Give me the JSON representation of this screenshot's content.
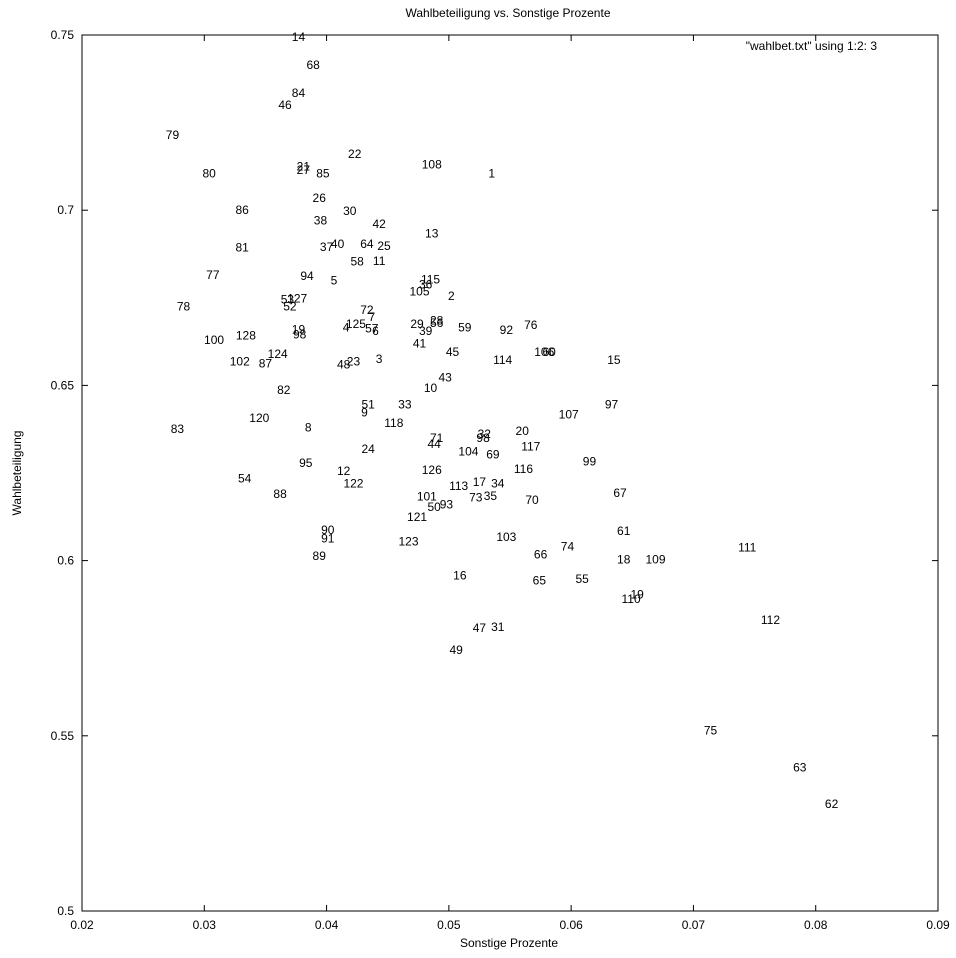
{
  "chart_data": {
    "type": "scatter",
    "title": "Wahlbeteiligung vs. Sonstige Prozente",
    "xlabel": "Sonstige Prozente",
    "ylabel": "Wahlbeteiligung",
    "legend": "\"wahlbet.txt\" using 1:2: 3",
    "legend_position": "top-right",
    "xlim": [
      0.02,
      0.09
    ],
    "ylim": [
      0.5,
      0.75
    ],
    "grid": false,
    "marker": "label",
    "x_ticks": [
      "0.02",
      "0.03",
      "0.04",
      "0.05",
      "0.06",
      "0.07",
      "0.08",
      "0.09"
    ],
    "y_ticks": [
      "0.5",
      "0.55",
      "0.6",
      "0.65",
      "0.7",
      "0.75"
    ],
    "points": [
      {
        "label": "14",
        "x": 0.0377,
        "y": 0.7495
      },
      {
        "label": "68",
        "x": 0.0389,
        "y": 0.7415
      },
      {
        "label": "84",
        "x": 0.0377,
        "y": 0.7335
      },
      {
        "label": "46",
        "x": 0.0366,
        "y": 0.73
      },
      {
        "label": "79",
        "x": 0.0274,
        "y": 0.7215
      },
      {
        "label": "22",
        "x": 0.0423,
        "y": 0.716
      },
      {
        "label": "108",
        "x": 0.0486,
        "y": 0.713
      },
      {
        "label": "21",
        "x": 0.0381,
        "y": 0.7125
      },
      {
        "label": "27",
        "x": 0.0381,
        "y": 0.7115
      },
      {
        "label": "85",
        "x": 0.0397,
        "y": 0.7105
      },
      {
        "label": "80",
        "x": 0.0304,
        "y": 0.7105
      },
      {
        "label": "1",
        "x": 0.0535,
        "y": 0.7105
      },
      {
        "label": "26",
        "x": 0.0394,
        "y": 0.7035
      },
      {
        "label": "86",
        "x": 0.0331,
        "y": 0.7
      },
      {
        "label": "30",
        "x": 0.0419,
        "y": 0.6998
      },
      {
        "label": "38",
        "x": 0.0395,
        "y": 0.697
      },
      {
        "label": "42",
        "x": 0.0443,
        "y": 0.696
      },
      {
        "label": "13",
        "x": 0.0486,
        "y": 0.6933
      },
      {
        "label": "37",
        "x": 0.04,
        "y": 0.6895
      },
      {
        "label": "40",
        "x": 0.0409,
        "y": 0.6903
      },
      {
        "label": "64",
        "x": 0.0433,
        "y": 0.6903
      },
      {
        "label": "25",
        "x": 0.0447,
        "y": 0.6898
      },
      {
        "label": "81",
        "x": 0.0331,
        "y": 0.6893
      },
      {
        "label": "58",
        "x": 0.0425,
        "y": 0.6853
      },
      {
        "label": "11",
        "x": 0.0443,
        "y": 0.6855
      },
      {
        "label": "77",
        "x": 0.0307,
        "y": 0.6815
      },
      {
        "label": "94",
        "x": 0.0384,
        "y": 0.6812
      },
      {
        "label": "5",
        "x": 0.0406,
        "y": 0.68
      },
      {
        "label": "115",
        "x": 0.0485,
        "y": 0.6802
      },
      {
        "label": "36",
        "x": 0.0481,
        "y": 0.6788
      },
      {
        "label": "105",
        "x": 0.0476,
        "y": 0.6768
      },
      {
        "label": "2",
        "x": 0.0502,
        "y": 0.6755
      },
      {
        "label": "53",
        "x": 0.0368,
        "y": 0.6745
      },
      {
        "label": "127",
        "x": 0.0376,
        "y": 0.6748
      },
      {
        "label": "52",
        "x": 0.037,
        "y": 0.6725
      },
      {
        "label": "78",
        "x": 0.0283,
        "y": 0.6725
      },
      {
        "label": "72",
        "x": 0.0433,
        "y": 0.6715
      },
      {
        "label": "7",
        "x": 0.0437,
        "y": 0.6695
      },
      {
        "label": "28",
        "x": 0.049,
        "y": 0.6685
      },
      {
        "label": "29",
        "x": 0.0474,
        "y": 0.6675
      },
      {
        "label": "56",
        "x": 0.049,
        "y": 0.6678
      },
      {
        "label": "125",
        "x": 0.0424,
        "y": 0.6675
      },
      {
        "label": "4",
        "x": 0.0416,
        "y": 0.6665
      },
      {
        "label": "59",
        "x": 0.0513,
        "y": 0.6665
      },
      {
        "label": "76",
        "x": 0.0567,
        "y": 0.6672
      },
      {
        "label": "57",
        "x": 0.0437,
        "y": 0.6663
      },
      {
        "label": "6",
        "x": 0.044,
        "y": 0.6655
      },
      {
        "label": "39",
        "x": 0.0481,
        "y": 0.6655
      },
      {
        "label": "92",
        "x": 0.0547,
        "y": 0.6658
      },
      {
        "label": "19",
        "x": 0.0377,
        "y": 0.666
      },
      {
        "label": "128",
        "x": 0.0334,
        "y": 0.6643
      },
      {
        "label": "98",
        "x": 0.0378,
        "y": 0.6645
      },
      {
        "label": "100",
        "x": 0.0308,
        "y": 0.663
      },
      {
        "label": "41",
        "x": 0.0476,
        "y": 0.662
      },
      {
        "label": "45",
        "x": 0.0503,
        "y": 0.6595
      },
      {
        "label": "106",
        "x": 0.0578,
        "y": 0.6595
      },
      {
        "label": "60",
        "x": 0.0582,
        "y": 0.6595
      },
      {
        "label": "124",
        "x": 0.036,
        "y": 0.659
      },
      {
        "label": "102",
        "x": 0.0329,
        "y": 0.6568
      },
      {
        "label": "87",
        "x": 0.035,
        "y": 0.6563
      },
      {
        "label": "3",
        "x": 0.0443,
        "y": 0.6575
      },
      {
        "label": "23",
        "x": 0.0422,
        "y": 0.6568
      },
      {
        "label": "48",
        "x": 0.0414,
        "y": 0.656
      },
      {
        "label": "114",
        "x": 0.0544,
        "y": 0.6573
      },
      {
        "label": "15",
        "x": 0.0635,
        "y": 0.6573
      },
      {
        "label": "43",
        "x": 0.0497,
        "y": 0.6522
      },
      {
        "label": "10",
        "x": 0.0485,
        "y": 0.6492
      },
      {
        "label": "82",
        "x": 0.0365,
        "y": 0.6487
      },
      {
        "label": "97",
        "x": 0.0633,
        "y": 0.6445
      },
      {
        "label": "51",
        "x": 0.0434,
        "y": 0.6445
      },
      {
        "label": "33",
        "x": 0.0464,
        "y": 0.6445
      },
      {
        "label": "9",
        "x": 0.0431,
        "y": 0.6422
      },
      {
        "label": "107",
        "x": 0.0598,
        "y": 0.6417
      },
      {
        "label": "120",
        "x": 0.0345,
        "y": 0.6407
      },
      {
        "label": "118",
        "x": 0.0455,
        "y": 0.6392
      },
      {
        "label": "8",
        "x": 0.0385,
        "y": 0.638
      },
      {
        "label": "83",
        "x": 0.0278,
        "y": 0.6375
      },
      {
        "label": "20",
        "x": 0.056,
        "y": 0.637
      },
      {
        "label": "32",
        "x": 0.0529,
        "y": 0.6362
      },
      {
        "label": "98",
        "x": 0.0528,
        "y": 0.635
      },
      {
        "label": "71",
        "x": 0.049,
        "y": 0.635
      },
      {
        "label": "44",
        "x": 0.0488,
        "y": 0.6333
      },
      {
        "label": "117",
        "x": 0.0567,
        "y": 0.6325
      },
      {
        "label": "24",
        "x": 0.0434,
        "y": 0.6318
      },
      {
        "label": "104",
        "x": 0.0516,
        "y": 0.6312
      },
      {
        "label": "69",
        "x": 0.0536,
        "y": 0.6303
      },
      {
        "label": "99",
        "x": 0.0615,
        "y": 0.6283
      },
      {
        "label": "95",
        "x": 0.0383,
        "y": 0.6278
      },
      {
        "label": "116",
        "x": 0.0561,
        "y": 0.6262
      },
      {
        "label": "126",
        "x": 0.0486,
        "y": 0.6258
      },
      {
        "label": "12",
        "x": 0.0414,
        "y": 0.6255
      },
      {
        "label": "54",
        "x": 0.0333,
        "y": 0.6235
      },
      {
        "label": "17",
        "x": 0.0525,
        "y": 0.6225
      },
      {
        "label": "34",
        "x": 0.054,
        "y": 0.622
      },
      {
        "label": "122",
        "x": 0.0422,
        "y": 0.622
      },
      {
        "label": "113",
        "x": 0.0508,
        "y": 0.6213
      },
      {
        "label": "67",
        "x": 0.064,
        "y": 0.6193
      },
      {
        "label": "88",
        "x": 0.0362,
        "y": 0.619
      },
      {
        "label": "73",
        "x": 0.0522,
        "y": 0.618
      },
      {
        "label": "35",
        "x": 0.0534,
        "y": 0.6185
      },
      {
        "label": "101",
        "x": 0.0482,
        "y": 0.6183
      },
      {
        "label": "70",
        "x": 0.0568,
        "y": 0.6173
      },
      {
        "label": "93",
        "x": 0.0498,
        "y": 0.616
      },
      {
        "label": "50",
        "x": 0.0488,
        "y": 0.6153
      },
      {
        "label": "121",
        "x": 0.0474,
        "y": 0.6125
      },
      {
        "label": "90",
        "x": 0.0401,
        "y": 0.6088
      },
      {
        "label": "61",
        "x": 0.0643,
        "y": 0.6085
      },
      {
        "label": "103",
        "x": 0.0547,
        "y": 0.6068
      },
      {
        "label": "91",
        "x": 0.0401,
        "y": 0.6063
      },
      {
        "label": "123",
        "x": 0.0467,
        "y": 0.6055
      },
      {
        "label": "74",
        "x": 0.0597,
        "y": 0.604
      },
      {
        "label": "111",
        "x": 0.0744,
        "y": 0.6037
      },
      {
        "label": "66",
        "x": 0.0575,
        "y": 0.6018
      },
      {
        "label": "89",
        "x": 0.0394,
        "y": 0.6013
      },
      {
        "label": "18",
        "x": 0.0643,
        "y": 0.6003
      },
      {
        "label": "109",
        "x": 0.0669,
        "y": 0.6003
      },
      {
        "label": "16",
        "x": 0.0509,
        "y": 0.5957
      },
      {
        "label": "55",
        "x": 0.0609,
        "y": 0.5948
      },
      {
        "label": "65",
        "x": 0.0574,
        "y": 0.5943
      },
      {
        "label": "19",
        "x": 0.0654,
        "y": 0.5903
      },
      {
        "label": "110",
        "x": 0.0649,
        "y": 0.589
      },
      {
        "label": "112",
        "x": 0.0763,
        "y": 0.583
      },
      {
        "label": "47",
        "x": 0.0525,
        "y": 0.5808
      },
      {
        "label": "31",
        "x": 0.054,
        "y": 0.581
      },
      {
        "label": "49",
        "x": 0.0506,
        "y": 0.5745
      },
      {
        "label": "75",
        "x": 0.0714,
        "y": 0.5515
      },
      {
        "label": "63",
        "x": 0.0787,
        "y": 0.541
      },
      {
        "label": "62",
        "x": 0.0813,
        "y": 0.5305
      }
    ]
  }
}
